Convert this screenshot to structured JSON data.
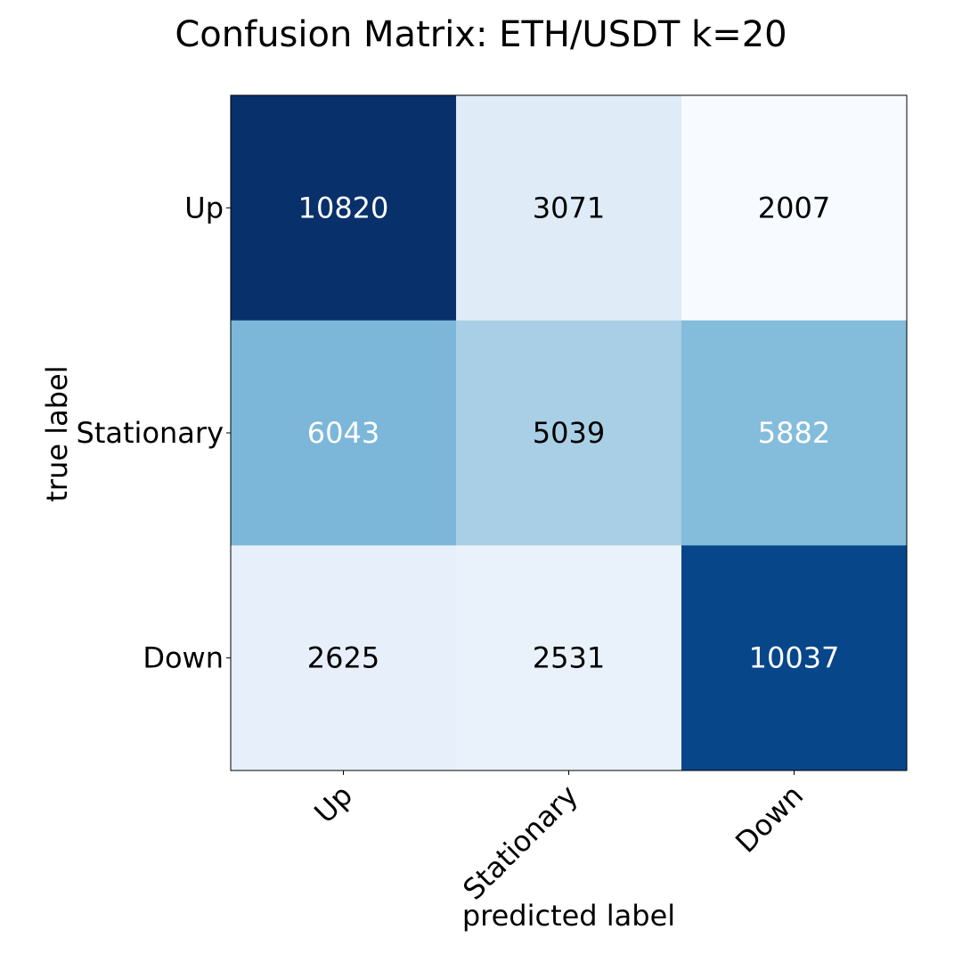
{
  "chart_data": {
    "type": "heatmap",
    "title": "Confusion Matrix: ETH/USDT k=20",
    "xlabel": "predicted label",
    "ylabel": "true label",
    "x_categories": [
      "Up",
      "Stationary",
      "Down"
    ],
    "y_categories": [
      "Up",
      "Stationary",
      "Down"
    ],
    "values": [
      [
        10820,
        3071,
        2007
      ],
      [
        6043,
        5039,
        5882
      ],
      [
        2625,
        2531,
        10037
      ]
    ],
    "colormap": "Blues",
    "grid": false,
    "cell_colors": [
      [
        "#08306b",
        "#dfebf7",
        "#f7fbff"
      ],
      [
        "#7cb7da",
        "#a8cfe5",
        "#84bcdb"
      ],
      [
        "#e7f0fa",
        "#e9f2fa",
        "#08468a"
      ]
    ],
    "text_colors": [
      [
        "#ffffff",
        "#000000",
        "#000000"
      ],
      [
        "#ffffff",
        "#000000",
        "#ffffff"
      ],
      [
        "#000000",
        "#000000",
        "#ffffff"
      ]
    ]
  }
}
